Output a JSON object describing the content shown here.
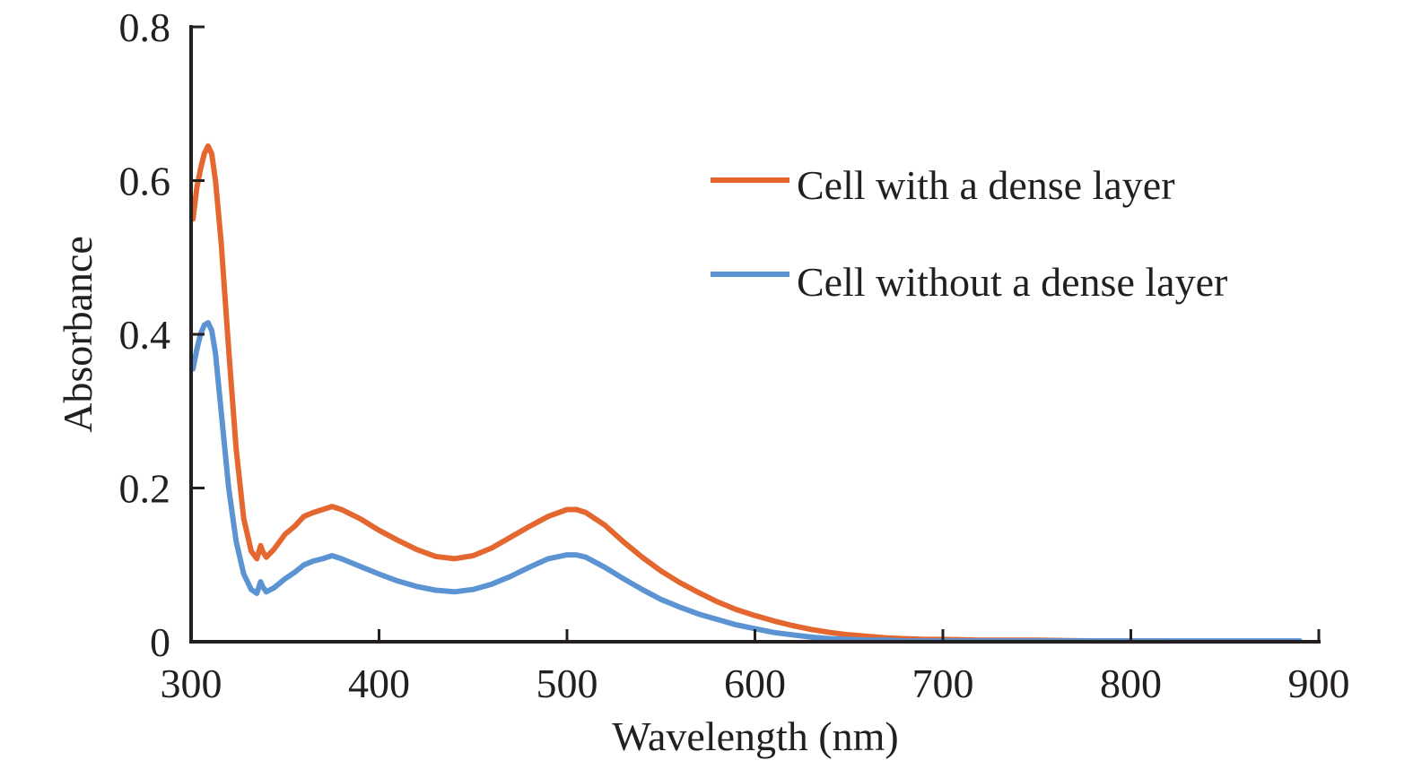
{
  "chart_data": {
    "type": "line",
    "title": "",
    "xlabel": "Wavelength (nm)",
    "ylabel": "Absorbance",
    "xlim": [
      300,
      900
    ],
    "ylim": [
      0,
      0.8
    ],
    "xticks": [
      300,
      400,
      500,
      600,
      700,
      800,
      900
    ],
    "yticks": [
      0,
      0.2,
      0.4,
      0.6,
      0.8
    ],
    "xtick_labels": [
      "300",
      "400",
      "500",
      "600",
      "700",
      "800",
      "900"
    ],
    "ytick_labels": [
      "0",
      "0.2",
      "0.4",
      "0.6",
      "0.8"
    ],
    "grid": false,
    "legend_position": "top-right",
    "series": [
      {
        "name": "Cell with a dense layer",
        "color": "#e3672f",
        "x": [
          301,
          303,
          305,
          307,
          309,
          311,
          313,
          316,
          320,
          324,
          328,
          332,
          335,
          337,
          338,
          340,
          344,
          350,
          355,
          360,
          365,
          370,
          375,
          380,
          390,
          400,
          410,
          420,
          430,
          440,
          450,
          460,
          470,
          480,
          490,
          500,
          505,
          510,
          520,
          530,
          540,
          550,
          560,
          570,
          580,
          590,
          600,
          610,
          620,
          630,
          640,
          650,
          660,
          670,
          680,
          690,
          700,
          720,
          750,
          780,
          800,
          820
        ],
        "y": [
          0.55,
          0.59,
          0.615,
          0.635,
          0.645,
          0.635,
          0.6,
          0.52,
          0.38,
          0.25,
          0.16,
          0.118,
          0.108,
          0.125,
          0.118,
          0.11,
          0.12,
          0.14,
          0.15,
          0.163,
          0.168,
          0.172,
          0.176,
          0.172,
          0.16,
          0.145,
          0.132,
          0.12,
          0.111,
          0.108,
          0.112,
          0.122,
          0.136,
          0.15,
          0.163,
          0.172,
          0.172,
          0.168,
          0.152,
          0.13,
          0.11,
          0.092,
          0.077,
          0.064,
          0.052,
          0.042,
          0.034,
          0.027,
          0.021,
          0.016,
          0.012,
          0.009,
          0.007,
          0.005,
          0.004,
          0.003,
          0.003,
          0.002,
          0.002,
          0.001,
          0.001,
          0.001
        ]
      },
      {
        "name": "Cell without a dense layer",
        "color": "#5b93d3",
        "x": [
          301,
          303,
          305,
          307,
          309,
          311,
          313,
          316,
          320,
          324,
          328,
          332,
          335,
          337,
          338,
          340,
          344,
          350,
          355,
          360,
          365,
          370,
          375,
          380,
          390,
          400,
          410,
          420,
          430,
          440,
          450,
          460,
          470,
          480,
          490,
          500,
          505,
          510,
          520,
          530,
          540,
          550,
          560,
          570,
          580,
          590,
          600,
          610,
          620,
          630,
          640,
          650,
          660,
          670,
          680,
          690,
          700,
          750,
          800,
          850,
          890
        ],
        "y": [
          0.355,
          0.38,
          0.4,
          0.412,
          0.415,
          0.405,
          0.375,
          0.3,
          0.2,
          0.13,
          0.088,
          0.068,
          0.063,
          0.078,
          0.072,
          0.065,
          0.07,
          0.082,
          0.09,
          0.1,
          0.105,
          0.108,
          0.112,
          0.108,
          0.098,
          0.088,
          0.079,
          0.072,
          0.067,
          0.065,
          0.068,
          0.075,
          0.085,
          0.097,
          0.108,
          0.113,
          0.113,
          0.11,
          0.097,
          0.082,
          0.068,
          0.055,
          0.045,
          0.036,
          0.029,
          0.022,
          0.017,
          0.012,
          0.009,
          0.006,
          0.004,
          0.003,
          0.002,
          0.002,
          0.001,
          0.001,
          0.001,
          0.001,
          0.001,
          0.001,
          0.001
        ]
      }
    ]
  }
}
